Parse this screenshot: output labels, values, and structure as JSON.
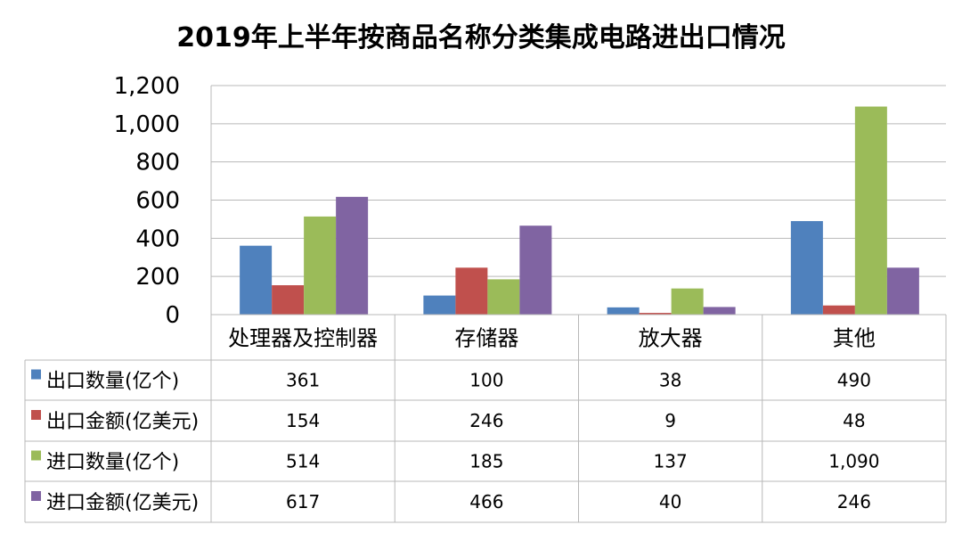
{
  "chart_data": {
    "type": "bar",
    "title": "2019年上半年按商品名称分类集成电路进出口情况",
    "categories": [
      "处理器及控制器",
      "存储器",
      "放大器",
      "其他"
    ],
    "series": [
      {
        "name": "出口数量(亿个)",
        "color": "#4F81BD",
        "values": [
          361,
          100,
          38,
          490
        ]
      },
      {
        "name": "出口金额(亿美元)",
        "color": "#C0504D",
        "values": [
          154,
          246,
          9,
          48
        ]
      },
      {
        "name": "进口数量(亿个)",
        "color": "#9BBB59",
        "values": [
          514,
          185,
          137,
          1090
        ]
      },
      {
        "name": "进口金额(亿美元)",
        "color": "#8064A2",
        "values": [
          617,
          466,
          40,
          246
        ]
      }
    ],
    "table_values": [
      [
        "361",
        "100",
        "38",
        "490"
      ],
      [
        "154",
        "246",
        "9",
        "48"
      ],
      [
        "514",
        "185",
        "137",
        "1,090"
      ],
      [
        "617",
        "466",
        "40",
        "246"
      ]
    ],
    "yticks": [
      "0",
      "200",
      "400",
      "600",
      "800",
      "1,000",
      "1,200"
    ],
    "ylim": [
      0,
      1200
    ],
    "grid": true,
    "legend": "data-table-left"
  }
}
